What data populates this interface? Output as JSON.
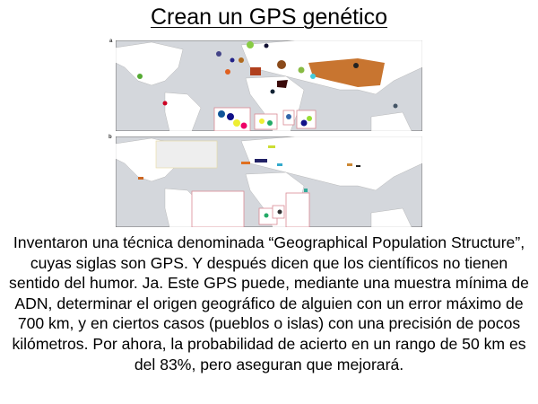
{
  "title": "Crean un GPS genético",
  "figure": {
    "panel_a_label": "a",
    "panel_b_label": "b",
    "colors": {
      "ocean": "#d4d7dc",
      "land": "#ffffff",
      "inset_border": "#d98b95"
    }
  },
  "body_text": "Inventaron una técnica denominada “Geographical Population Structure”, cuyas siglas son GPS. Y después dicen que los científicos no tienen sentido del humor. Ja. Este GPS puede, mediante una muestra mínima de ADN, determinar el origen geográfico de alguien con un error máximo de 700 km, y en ciertos casos  (pueblos o islas) con una precisión de pocos kilómetros. Por ahora, la probabilidad de acierto en un rango de 50 km es del 83%, pero aseguran que mejorará."
}
